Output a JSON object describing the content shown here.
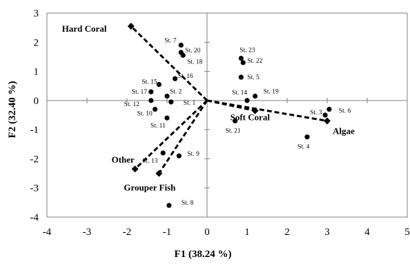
{
  "chart_data": {
    "type": "scatter",
    "title": "",
    "xlabel": "F1 (38.24 %)",
    "ylabel": "F2 (32.40 %)",
    "xlim": [
      -4,
      5
    ],
    "ylim": [
      -4,
      3
    ],
    "x_ticks": [
      -4,
      -3,
      -2,
      -1,
      0,
      1,
      2,
      3,
      4,
      5
    ],
    "y_ticks": [
      -4,
      -3,
      -2,
      -1,
      0,
      1,
      2,
      3
    ],
    "grid": false,
    "legend": "none",
    "point_color": "#000000",
    "stations": [
      {
        "label": "St. 7",
        "x": -0.65,
        "y": 1.9
      },
      {
        "label": "St. 20",
        "x": -0.65,
        "y": 1.65
      },
      {
        "label": "St. 18",
        "x": -0.6,
        "y": 1.55
      },
      {
        "label": "St. 16",
        "x": -0.8,
        "y": 0.75
      },
      {
        "label": "St. 15",
        "x": -1.2,
        "y": 0.55
      },
      {
        "label": "St. 2",
        "x": -1.0,
        "y": 0.15
      },
      {
        "label": "St. 17",
        "x": -1.4,
        "y": 0.3
      },
      {
        "label": "St. 12",
        "x": -1.4,
        "y": 0.0
      },
      {
        "label": "St. 1",
        "x": -0.9,
        "y": -0.05
      },
      {
        "label": "St. 10",
        "x": -1.3,
        "y": -0.3
      },
      {
        "label": "St. 11",
        "x": -1.0,
        "y": -0.6
      },
      {
        "label": "St. 13",
        "x": -1.1,
        "y": -1.8
      },
      {
        "label": "St. 9",
        "x": -0.7,
        "y": -1.9
      },
      {
        "label": "St. 8",
        "x": -0.95,
        "y": -3.6
      },
      {
        "label": "St. 23",
        "x": 0.85,
        "y": 1.45
      },
      {
        "label": "St. 22",
        "x": 0.9,
        "y": 1.3
      },
      {
        "label": "St. 5",
        "x": 0.85,
        "y": 0.8
      },
      {
        "label": "St. 19",
        "x": 1.2,
        "y": 0.15
      },
      {
        "label": "St. 14",
        "x": 1.0,
        "y": 0.0
      },
      {
        "label": "St. 21",
        "x": 0.7,
        "y": -0.7
      },
      {
        "label": "St. 3",
        "x": 2.95,
        "y": -0.5
      },
      {
        "label": "St. 6",
        "x": 3.05,
        "y": -0.3
      },
      {
        "label": "St. 4",
        "x": 2.5,
        "y": -1.25
      }
    ],
    "vectors": [
      {
        "label": "Hard Coral",
        "x": -1.9,
        "y": 2.55
      },
      {
        "label": "Algae",
        "x": 3.0,
        "y": -0.7
      },
      {
        "label": "Soft Coral",
        "x": 1.2,
        "y": -0.35
      },
      {
        "label": "Other",
        "x": -1.8,
        "y": -2.35
      },
      {
        "label": "Grouper Fish",
        "x": -1.2,
        "y": -2.5
      }
    ]
  }
}
